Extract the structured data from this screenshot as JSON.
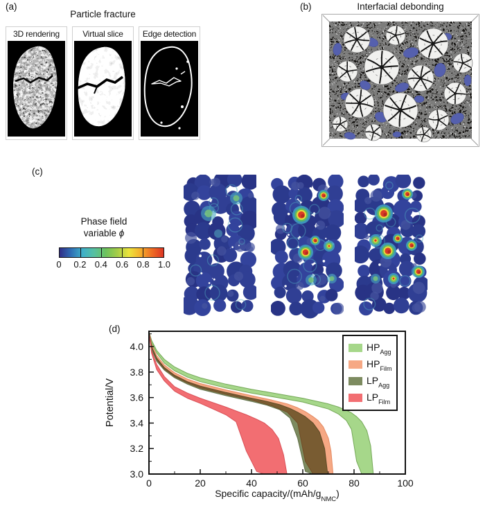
{
  "figure": {
    "panels": {
      "a": {
        "tag": "(a)",
        "title": "Particle fracture",
        "subpanels": [
          {
            "label": "3D rendering",
            "alt": "grayscale 3D rendering of a cracked NMC particle on black background"
          },
          {
            "label": "Virtual slice",
            "alt": "grayscale tomography slice of particle with horizontal crack"
          },
          {
            "label": "Edge detection",
            "alt": "white detected particle and crack edges on black background"
          }
        ]
      },
      "b": {
        "tag": "(b)",
        "title": "Interfacial debonding",
        "image_alt": "cross-section with white NMC particles, dark speckled carbon-binder domain and blue debonded interface regions"
      },
      "c": {
        "tag": "(c)",
        "colorbar": {
          "title_line1": "Phase field",
          "title_line2_text": "variable",
          "title_symbol": "ϕ",
          "tick_labels": [
            "0",
            "0.2",
            "0.4",
            "0.6",
            "0.8",
            "1.0"
          ],
          "gradient_colors": [
            "#312d88",
            "#2f6fb5",
            "#3fb0c9",
            "#57c0a0",
            "#6cc25c",
            "#a5cd48",
            "#ece43c",
            "#f5af2b",
            "#ee6d24",
            "#dd3524"
          ]
        },
        "structures_alt": [
          "simulated electrode microstructure, little damage, mostly dark blue",
          "simulated electrode microstructure, several red damage hotspots",
          "simulated electrode microstructure, most red damage hotspots"
        ]
      },
      "d": {
        "tag": "(d)"
      }
    }
  },
  "chart_data": {
    "type": "area",
    "title": "",
    "xlabel": "Specific capacity/(mAh/g_NMC)",
    "xlabel_parts": {
      "prefix": "Specific capacity/(mAh/g",
      "sub": "NMC",
      "suffix": ")"
    },
    "ylabel": "Potential/V",
    "xlim": [
      0,
      100
    ],
    "ylim": [
      3.0,
      4.12
    ],
    "x_major_ticks": [
      0,
      20,
      40,
      60,
      80,
      100
    ],
    "x_minor_ticks": [
      10,
      30,
      50,
      70,
      90
    ],
    "y_major_ticks": [
      3.0,
      3.2,
      3.4,
      3.6,
      3.8,
      4.0
    ],
    "y_minor_ticks": [
      3.1,
      3.3,
      3.5,
      3.7,
      3.9,
      4.1
    ],
    "grid": false,
    "legend_position": "top-right",
    "series": [
      {
        "name_main": "HP",
        "name_sub": "Agg",
        "color": "#a6d78a",
        "edge": "#74a857",
        "blend": false,
        "x": [
          0,
          1,
          3,
          6,
          10,
          15,
          20,
          30,
          40,
          50,
          60,
          70,
          74,
          77,
          79,
          81,
          83,
          85,
          86.5,
          87.5
        ],
        "upper": [
          4.12,
          4.05,
          3.97,
          3.9,
          3.84,
          3.79,
          3.755,
          3.705,
          3.665,
          3.63,
          3.595,
          3.55,
          3.525,
          3.5,
          3.48,
          3.45,
          3.41,
          3.34,
          3.22,
          3.0
        ],
        "lower": [
          4.12,
          4.03,
          3.95,
          3.87,
          3.81,
          3.76,
          3.725,
          3.675,
          3.635,
          3.6,
          3.565,
          3.51,
          3.47,
          3.42,
          3.35,
          3.1,
          3.0,
          3.0,
          3.0,
          3.0
        ]
      },
      {
        "name_main": "HP",
        "name_sub": "Film",
        "color": "#f6a884",
        "edge": "#e58a61",
        "blend": false,
        "x": [
          0,
          1,
          3,
          6,
          10,
          15,
          20,
          30,
          40,
          48,
          54,
          58,
          61,
          64,
          66,
          68,
          70,
          71,
          71.8
        ],
        "upper": [
          4.12,
          4.02,
          3.93,
          3.855,
          3.795,
          3.745,
          3.71,
          3.66,
          3.615,
          3.58,
          3.55,
          3.52,
          3.49,
          3.45,
          3.42,
          3.37,
          3.28,
          3.18,
          3.0
        ],
        "lower": [
          4.12,
          4.0,
          3.9,
          3.825,
          3.765,
          3.715,
          3.675,
          3.625,
          3.58,
          3.535,
          3.485,
          3.4,
          3.1,
          3.0,
          3.0,
          3.0,
          3.0,
          3.0,
          3.0
        ]
      },
      {
        "name_main": "LP",
        "name_sub": "Agg",
        "color": "#7d8b60",
        "edge": "#5f6e46",
        "blend": true,
        "x": [
          0,
          1,
          3,
          6,
          10,
          15,
          20,
          30,
          40,
          46,
          51,
          55,
          58,
          61,
          64,
          66.5,
          68.5,
          69.7
        ],
        "upper": [
          4.12,
          4.0,
          3.91,
          3.835,
          3.775,
          3.725,
          3.69,
          3.64,
          3.595,
          3.57,
          3.545,
          3.515,
          3.485,
          3.45,
          3.4,
          3.33,
          3.2,
          3.0
        ],
        "lower": [
          4.12,
          3.98,
          3.885,
          3.815,
          3.755,
          3.705,
          3.665,
          3.615,
          3.57,
          3.54,
          3.505,
          3.44,
          3.28,
          3.02,
          3.0,
          3.0,
          3.0,
          3.0
        ]
      },
      {
        "name_main": "LP",
        "name_sub": "Film",
        "color": "#f26e72",
        "edge": "#d94f56",
        "blend": false,
        "x": [
          0,
          1,
          3,
          6,
          10,
          15,
          20,
          25,
          30,
          34,
          38,
          42,
          45,
          48,
          50.5,
          52.5,
          53.8
        ],
        "upper": [
          4.12,
          3.97,
          3.86,
          3.765,
          3.685,
          3.635,
          3.595,
          3.56,
          3.525,
          3.495,
          3.465,
          3.43,
          3.4,
          3.35,
          3.28,
          3.15,
          3.0
        ],
        "lower": [
          4.12,
          3.95,
          3.82,
          3.73,
          3.65,
          3.595,
          3.555,
          3.51,
          3.465,
          3.41,
          3.18,
          3.02,
          3.0,
          3.0,
          3.0,
          3.0,
          3.0
        ]
      }
    ]
  }
}
